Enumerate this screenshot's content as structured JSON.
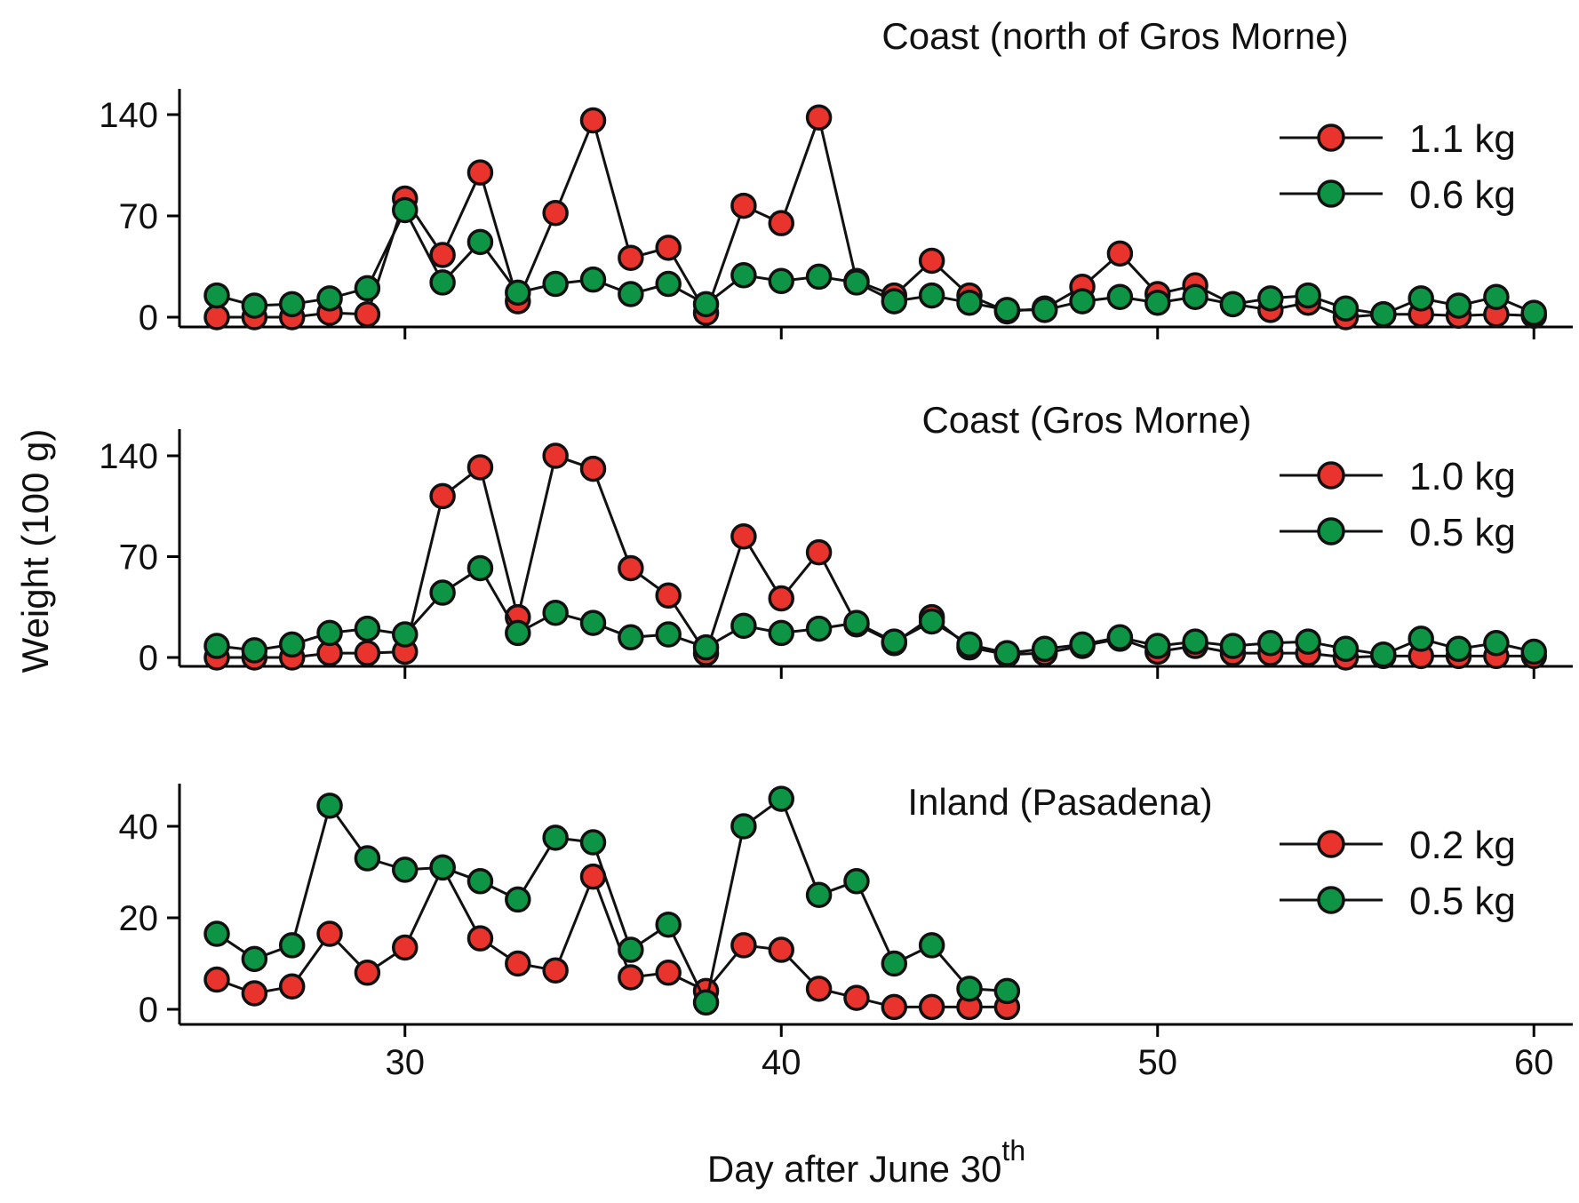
{
  "figure": {
    "x_label": "Day after June 30",
    "x_label_sup": "th",
    "y_label": "Weight (100 g)"
  },
  "colors": {
    "red": "#e8342c",
    "green": "#0e9445",
    "stroke": "#111111"
  },
  "chart_data": [
    {
      "type": "line",
      "title": "Coast (north of Gros Morne)",
      "xlabel": "Day after June 30th",
      "ylabel": "Weight (100 g)",
      "xlim": [
        24,
        61
      ],
      "ylim": [
        -5,
        155
      ],
      "xticks": [
        30,
        40,
        50,
        60
      ],
      "yticks": [
        0,
        70,
        140
      ],
      "series": [
        {
          "name": "1.1 kg",
          "color": "#e8342c",
          "x": [
            25,
            26,
            27,
            28,
            29,
            30,
            31,
            32,
            33,
            34,
            35,
            36,
            37,
            38,
            39,
            40,
            41,
            42,
            43,
            44,
            45,
            46,
            47,
            48,
            49,
            50,
            51,
            52,
            53,
            54,
            55,
            56,
            57,
            58,
            59,
            60
          ],
          "y": [
            0,
            0,
            0,
            3,
            2,
            82,
            43,
            100,
            11,
            72,
            136,
            41,
            48,
            3,
            77,
            65,
            138,
            25,
            15,
            39,
            15,
            4,
            6,
            21,
            44,
            16,
            22,
            9,
            5,
            10,
            0,
            2,
            2,
            1,
            2,
            1
          ]
        },
        {
          "name": "0.6 kg",
          "color": "#0e9445",
          "x": [
            25,
            26,
            27,
            28,
            29,
            30,
            31,
            32,
            33,
            34,
            35,
            36,
            37,
            38,
            39,
            40,
            41,
            42,
            43,
            44,
            45,
            46,
            47,
            48,
            49,
            50,
            51,
            52,
            53,
            54,
            55,
            56,
            57,
            58,
            59,
            60
          ],
          "y": [
            15,
            8,
            9,
            13,
            20,
            74,
            24,
            52,
            17,
            23,
            26,
            16,
            23,
            9,
            29,
            25,
            28,
            24,
            11,
            15,
            10,
            5,
            5,
            11,
            14,
            10,
            14,
            9,
            13,
            15,
            6,
            2,
            13,
            8,
            14,
            3
          ]
        }
      ]
    },
    {
      "type": "line",
      "title": "Coast (Gros Morne)",
      "xlabel": "Day after June 30th",
      "ylabel": "Weight (100 g)",
      "xlim": [
        24,
        61
      ],
      "ylim": [
        -5,
        155
      ],
      "xticks": [
        30,
        40,
        50,
        60
      ],
      "yticks": [
        0,
        70,
        140
      ],
      "series": [
        {
          "name": "1.0 kg",
          "color": "#e8342c",
          "x": [
            25,
            26,
            27,
            28,
            29,
            30,
            31,
            32,
            33,
            34,
            35,
            36,
            37,
            38,
            39,
            40,
            41,
            42,
            43,
            44,
            45,
            46,
            47,
            48,
            49,
            50,
            51,
            52,
            53,
            54,
            55,
            56,
            57,
            58,
            59,
            60
          ],
          "y": [
            0,
            0,
            0,
            3,
            3,
            4,
            112,
            132,
            28,
            140,
            131,
            62,
            43,
            3,
            84,
            41,
            73,
            23,
            10,
            28,
            7,
            2,
            3,
            8,
            13,
            4,
            8,
            3,
            3,
            3,
            0,
            1,
            1,
            1,
            1,
            1
          ]
        },
        {
          "name": "0.5 kg",
          "color": "#0e9445",
          "x": [
            25,
            26,
            27,
            28,
            29,
            30,
            31,
            32,
            33,
            34,
            35,
            36,
            37,
            38,
            39,
            40,
            41,
            42,
            43,
            44,
            45,
            46,
            47,
            48,
            49,
            50,
            51,
            52,
            53,
            54,
            55,
            56,
            57,
            58,
            59,
            60
          ],
          "y": [
            8,
            5,
            9,
            17,
            20,
            16,
            45,
            62,
            17,
            31,
            24,
            14,
            16,
            7,
            22,
            17,
            20,
            24,
            11,
            25,
            9,
            3,
            6,
            9,
            14,
            8,
            11,
            8,
            10,
            11,
            6,
            2,
            13,
            6,
            10,
            4
          ]
        }
      ]
    },
    {
      "type": "line",
      "title": "Inland (Pasadena)",
      "xlabel": "Day after June 30th",
      "ylabel": "Weight (100 g)",
      "xlim": [
        24,
        61
      ],
      "ylim": [
        -3,
        50
      ],
      "xticks": [
        30,
        40,
        50,
        60
      ],
      "yticks": [
        0,
        20,
        40
      ],
      "series": [
        {
          "name": "0.2 kg",
          "color": "#e8342c",
          "x": [
            25,
            26,
            27,
            28,
            29,
            30,
            31,
            32,
            33,
            34,
            35,
            36,
            37,
            38,
            39,
            40,
            41,
            42,
            43,
            44,
            45,
            46
          ],
          "y": [
            6.5,
            3.5,
            5,
            16.5,
            8,
            13.5,
            31,
            15.5,
            10,
            8.5,
            29,
            7,
            8,
            4,
            14,
            13,
            4.5,
            2.5,
            0.5,
            0.5,
            0.5,
            0.5
          ]
        },
        {
          "name": "0.5 kg",
          "color": "#0e9445",
          "x": [
            25,
            26,
            27,
            28,
            29,
            30,
            31,
            32,
            33,
            34,
            35,
            36,
            37,
            38,
            39,
            40,
            41,
            42,
            43,
            44,
            45,
            46
          ],
          "y": [
            16.5,
            11,
            14,
            44.5,
            33,
            30.5,
            31,
            28,
            24,
            37.5,
            36.5,
            13,
            18.5,
            1.5,
            40,
            46,
            25,
            28,
            10,
            14,
            4.5,
            4
          ]
        }
      ]
    }
  ]
}
